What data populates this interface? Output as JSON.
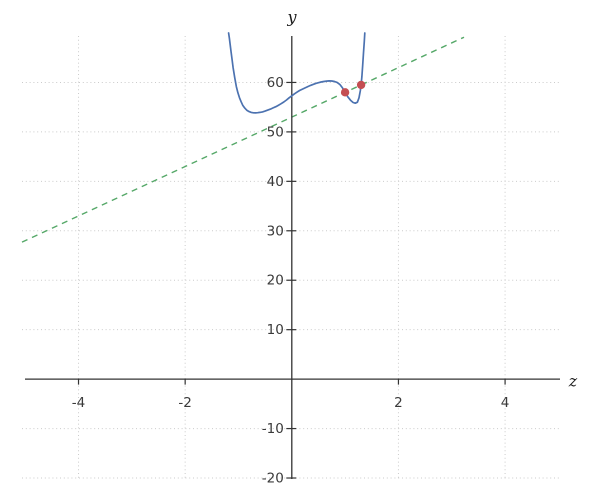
{
  "chart_data": {
    "type": "line",
    "title": "",
    "xlabel": "z",
    "ylabel": "y",
    "xlim": [
      -5.06,
      5.03
    ],
    "ylim": [
      -20.2,
      70.0
    ],
    "xticks": [
      -4,
      -2,
      2,
      4
    ],
    "yticks": [
      60,
      50,
      40,
      30,
      20,
      10,
      -10,
      -20
    ],
    "xtick_labels": [
      "-4",
      "-2",
      "2",
      "4"
    ],
    "ytick_labels": [
      "60",
      "50",
      "40",
      "30",
      "20",
      "10",
      "-10",
      "-20"
    ],
    "grid": "dotted",
    "legend": "none",
    "colors": {
      "background": "#ffffff",
      "axis": "#333333",
      "grid": "#cbcbcb",
      "tick_label": "#3a3a3a",
      "curve": "#4c72b0",
      "secant": "#55a868",
      "marker": "#c44e52"
    },
    "series": [
      {
        "name": "function-curve",
        "style": "solid",
        "color": "#4c72b0",
        "points": [
          [
            -1.185,
            70.0
          ],
          [
            -1.17,
            68.9
          ],
          [
            -1.155,
            67.6
          ],
          [
            -1.14,
            66.3
          ],
          [
            -1.12,
            64.6
          ],
          [
            -1.1,
            63.0
          ],
          [
            -1.07,
            61.0
          ],
          [
            -1.04,
            59.2
          ],
          [
            -1.01,
            57.9
          ],
          [
            -0.98,
            56.9
          ],
          [
            -0.95,
            56.1
          ],
          [
            -0.92,
            55.4
          ],
          [
            -0.88,
            54.8
          ],
          [
            -0.84,
            54.35
          ],
          [
            -0.8,
            54.1
          ],
          [
            -0.76,
            53.95
          ],
          [
            -0.72,
            53.87
          ],
          [
            -0.68,
            53.85
          ],
          [
            -0.64,
            53.88
          ],
          [
            -0.6,
            53.95
          ],
          [
            -0.55,
            54.05
          ],
          [
            -0.5,
            54.2
          ],
          [
            -0.45,
            54.4
          ],
          [
            -0.4,
            54.6
          ],
          [
            -0.35,
            54.85
          ],
          [
            -0.3,
            55.1
          ],
          [
            -0.25,
            55.4
          ],
          [
            -0.2,
            55.7
          ],
          [
            -0.15,
            56.05
          ],
          [
            -0.1,
            56.45
          ],
          [
            -0.05,
            56.9
          ],
          [
            0.0,
            57.3
          ],
          [
            0.05,
            57.7
          ],
          [
            0.1,
            58.05
          ],
          [
            0.15,
            58.4
          ],
          [
            0.2,
            58.65
          ],
          [
            0.25,
            58.9
          ],
          [
            0.3,
            59.15
          ],
          [
            0.35,
            59.4
          ],
          [
            0.4,
            59.6
          ],
          [
            0.45,
            59.8
          ],
          [
            0.5,
            59.95
          ],
          [
            0.55,
            60.1
          ],
          [
            0.6,
            60.2
          ],
          [
            0.65,
            60.28
          ],
          [
            0.7,
            60.32
          ],
          [
            0.75,
            60.3
          ],
          [
            0.8,
            60.2
          ],
          [
            0.85,
            60.0
          ],
          [
            0.9,
            59.6
          ],
          [
            0.95,
            58.9
          ],
          [
            1.0,
            58.0
          ],
          [
            1.05,
            57.1
          ],
          [
            1.1,
            56.4
          ],
          [
            1.15,
            55.95
          ],
          [
            1.19,
            55.8
          ],
          [
            1.23,
            56.0
          ],
          [
            1.26,
            56.9
          ],
          [
            1.285,
            58.3
          ],
          [
            1.3,
            59.5
          ],
          [
            1.315,
            61.2
          ],
          [
            1.33,
            63.5
          ],
          [
            1.345,
            66.0
          ],
          [
            1.36,
            68.3
          ],
          [
            1.37,
            70.0
          ]
        ]
      },
      {
        "name": "secant-line",
        "style": "dashed",
        "color": "#55a868",
        "slope": 5,
        "intercept": 53,
        "points": [
          [
            -5.06,
            27.7
          ],
          [
            3.23,
            69.15
          ]
        ]
      }
    ],
    "markers": [
      {
        "name": "point-A",
        "x": 1.0,
        "y": 58.0,
        "color": "#c44e52"
      },
      {
        "name": "point-B",
        "x": 1.3,
        "y": 59.5,
        "color": "#c44e52"
      }
    ]
  }
}
